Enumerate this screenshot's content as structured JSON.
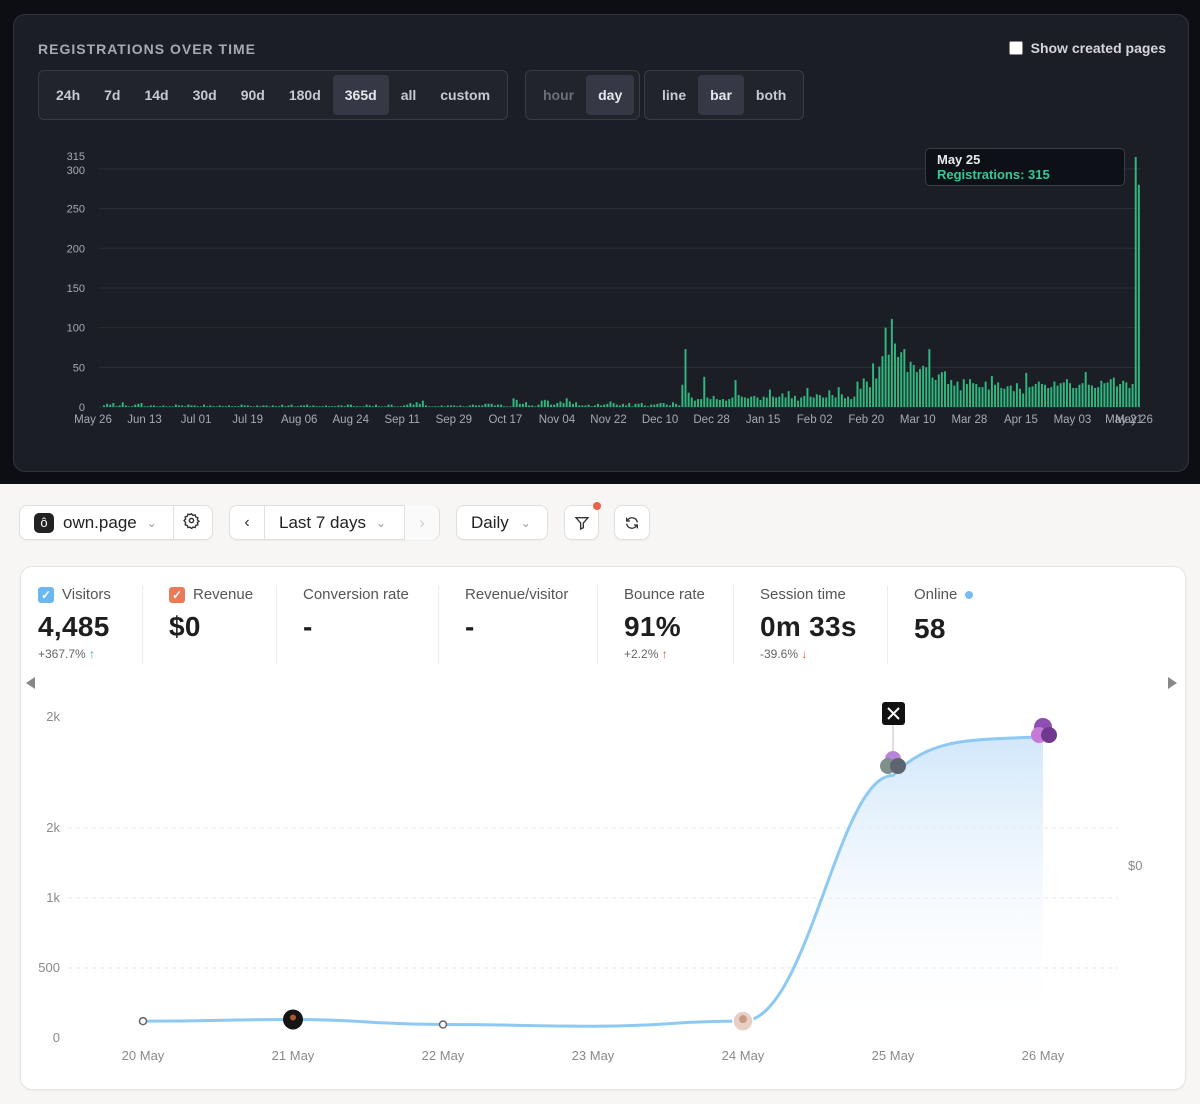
{
  "registrations": {
    "title": "REGISTRATIONS OVER TIME",
    "show_created_label": "Show created pages",
    "range_options": [
      "24h",
      "7d",
      "14d",
      "30d",
      "90d",
      "180d",
      "365d",
      "all",
      "custom"
    ],
    "range_active": "365d",
    "unit_options": [
      "hour",
      "day"
    ],
    "unit_active": "day",
    "type_options": [
      "line",
      "bar",
      "both"
    ],
    "type_active": "bar",
    "tooltip": {
      "date": "May 25",
      "label": "Registrations: 315"
    }
  },
  "toolbar": {
    "site_name": "own.page",
    "period_label": "Last 7 days",
    "interval_label": "Daily"
  },
  "metrics": [
    {
      "label": "Visitors",
      "value": "4,485",
      "change": "+367.7%",
      "trend": "up-good",
      "check": "blue"
    },
    {
      "label": "Revenue",
      "value": "$0",
      "change": "",
      "trend": "",
      "check": "orange"
    },
    {
      "label": "Conversion rate",
      "value": "-",
      "change": "",
      "trend": ""
    },
    {
      "label": "Revenue/visitor",
      "value": "-",
      "change": "",
      "trend": ""
    },
    {
      "label": "Bounce rate",
      "value": "91%",
      "change": "+2.2%",
      "trend": "up-bad"
    },
    {
      "label": "Session time",
      "value": "0m 33s",
      "change": "-39.6%",
      "trend": "down-bad"
    },
    {
      "label": "Online",
      "value": "58",
      "change": "",
      "trend": "",
      "dot": true
    }
  ],
  "chart_data": [
    {
      "type": "bar",
      "title": "REGISTRATIONS OVER TIME",
      "x_tick_labels": [
        "May 26",
        "Jun 13",
        "Jul 01",
        "Jul 19",
        "Aug 06",
        "Aug 24",
        "Sep 11",
        "Sep 29",
        "Oct 17",
        "Nov 04",
        "Nov 22",
        "Dec 10",
        "Dec 28",
        "Jan 15",
        "Feb 02",
        "Feb 20",
        "Mar 10",
        "Mar 28",
        "Apr 15",
        "May 03",
        "May 21",
        "May 26"
      ],
      "y_ticks": [
        0,
        50,
        100,
        150,
        200,
        250,
        300,
        315
      ],
      "ylim": [
        0,
        315
      ],
      "series": [
        {
          "values": [
            2,
            4,
            3,
            5,
            1,
            2,
            6,
            2,
            0,
            1,
            3,
            4,
            5,
            1,
            1,
            2,
            2,
            0,
            1,
            2,
            0,
            1,
            0,
            3,
            2,
            2,
            1,
            3,
            2,
            2,
            1,
            0,
            3,
            1,
            2,
            1,
            0,
            2,
            1,
            1,
            2,
            1,
            1,
            1,
            3,
            2,
            2,
            1,
            0,
            2,
            1,
            2,
            2,
            0,
            2,
            1,
            1,
            3,
            1,
            2,
            3,
            0,
            1,
            2,
            2,
            3,
            1,
            2,
            1,
            1,
            1,
            2,
            1,
            1,
            1,
            2,
            2,
            1,
            3,
            3,
            1,
            1,
            0,
            1,
            3,
            2,
            1,
            3,
            1,
            0,
            1,
            3,
            3,
            0,
            0,
            1,
            2,
            3,
            5,
            3,
            6,
            4,
            8,
            2,
            0,
            0,
            1,
            0,
            2,
            0,
            2,
            2,
            2,
            1,
            2,
            0,
            0,
            2,
            3,
            2,
            2,
            2,
            4,
            4,
            4,
            2,
            3,
            3,
            1,
            0,
            0,
            11,
            9,
            4,
            4,
            6,
            2,
            2,
            0,
            3,
            8,
            9,
            8,
            3,
            3,
            5,
            7,
            5,
            11,
            7,
            4,
            6,
            2,
            2,
            2,
            3,
            1,
            2,
            4,
            2,
            3,
            4,
            7,
            5,
            3,
            2,
            4,
            2,
            5,
            1,
            4,
            4,
            5,
            2,
            1,
            3,
            3,
            4,
            5,
            5,
            3,
            2,
            6,
            4,
            2,
            28,
            73,
            18,
            12,
            8,
            10,
            10,
            38,
            12,
            10,
            14,
            10,
            9,
            10,
            8,
            10,
            12,
            34,
            15,
            13,
            12,
            11,
            13,
            14,
            12,
            9,
            13,
            12,
            22,
            13,
            12,
            13,
            17,
            12,
            20,
            11,
            14,
            8,
            12,
            14,
            24,
            13,
            12,
            16,
            15,
            12,
            12,
            21,
            15,
            12,
            25,
            16,
            11,
            13,
            10,
            13,
            32,
            23,
            36,
            32,
            25,
            55,
            36,
            51,
            64,
            100,
            66,
            111,
            80,
            63,
            69,
            73,
            44,
            57,
            53,
            44,
            48,
            52,
            50,
            73,
            37,
            34,
            41,
            44,
            45,
            29,
            34,
            27,
            32,
            21,
            35,
            29,
            35,
            30,
            29,
            25,
            25,
            32,
            22,
            39,
            28,
            31,
            24,
            23,
            26,
            27,
            20,
            30,
            23,
            17,
            43,
            25,
            26,
            29,
            32,
            29,
            28,
            24,
            25,
            32,
            27,
            30,
            31,
            35,
            30,
            24,
            24,
            28,
            30,
            44,
            28,
            27,
            24,
            25,
            33,
            30,
            31,
            35,
            37,
            26,
            29,
            33,
            31,
            24,
            29,
            315,
            280
          ]
        }
      ]
    },
    {
      "type": "area",
      "categories": [
        "20 May",
        "21 May",
        "22 May",
        "23 May",
        "24 May",
        "25 May",
        "26 May"
      ],
      "y_tick_labels": [
        "0",
        "500",
        "1k",
        "2k",
        "2k"
      ],
      "right_axis_label": "$0",
      "series": [
        {
          "name": "Visitors",
          "values": [
            100,
            110,
            80,
            70,
            100,
            1560,
            1790
          ]
        }
      ]
    }
  ]
}
